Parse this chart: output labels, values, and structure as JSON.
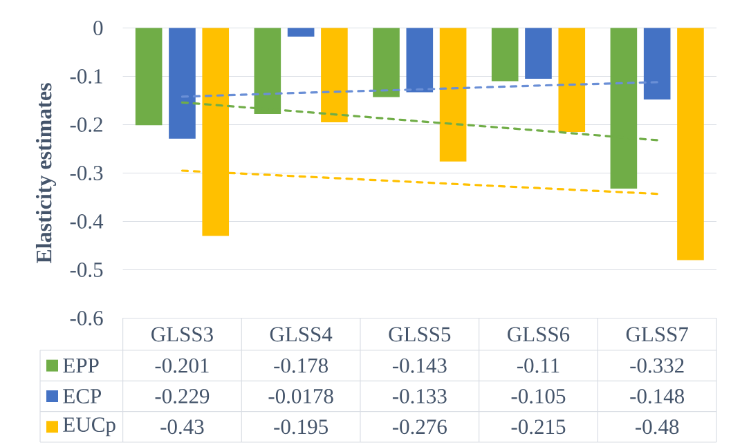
{
  "chart_data": {
    "type": "bar",
    "ylabel": "Elasticity estimates",
    "categories": [
      "GLSS3",
      "GLSS4",
      "GLSS5",
      "GLSS6",
      "GLSS7"
    ],
    "series": [
      {
        "name": "EPP",
        "color": "#70ad47",
        "values": [
          -0.201,
          -0.178,
          -0.143,
          -0.11,
          -0.332
        ],
        "value_labels": [
          "-0.201",
          "-0.178",
          "-0.143",
          "-0.11",
          "-0.332"
        ]
      },
      {
        "name": "ECP",
        "color": "#4472c4",
        "values": [
          -0.229,
          -0.0178,
          -0.133,
          -0.105,
          -0.148
        ],
        "value_labels": [
          "-0.229",
          "-0.0178",
          "-0.133",
          "-0.105",
          "-0.148"
        ]
      },
      {
        "name": "EUCp",
        "color": "#ffc000",
        "values": [
          -0.43,
          -0.195,
          -0.276,
          -0.215,
          -0.48
        ],
        "value_labels": [
          "-0.43",
          "-0.195",
          "-0.276",
          "-0.215",
          "-0.48"
        ]
      },
      {
        "type": "line",
        "color": "#70ad47",
        "line_style": "dashed",
        "values": [
          -0.154,
          -0.173,
          -0.193,
          -0.212,
          -0.232
        ]
      },
      {
        "type": "line",
        "color": "#6a8fd6",
        "line_style": "dashed",
        "values": [
          -0.142,
          -0.134,
          -0.127,
          -0.119,
          -0.112
        ]
      },
      {
        "type": "line",
        "color": "#ffc000",
        "line_style": "dashed",
        "values": [
          -0.295,
          -0.307,
          -0.319,
          -0.331,
          -0.343
        ]
      }
    ],
    "ylim": [
      -0.6,
      0
    ],
    "yticks": [
      0,
      -0.1,
      -0.2,
      -0.3,
      -0.4,
      -0.5,
      -0.6
    ],
    "grid": "y",
    "legend": "bottom left"
  }
}
